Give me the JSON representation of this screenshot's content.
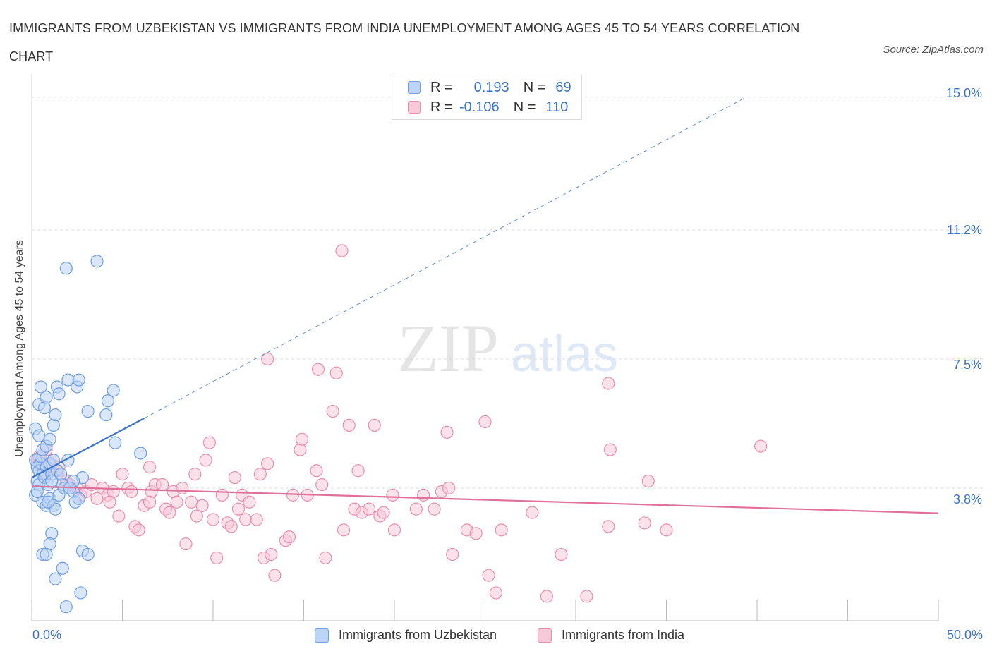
{
  "header": {
    "title": "IMMIGRANTS FROM UZBEKISTAN VS IMMIGRANTS FROM INDIA UNEMPLOYMENT AMONG AGES 45 TO 54 YEARS CORRELATION CHART",
    "source": "Source: ZipAtlas.com"
  },
  "watermark": {
    "zip": "ZIP",
    "atlas": "atlas"
  },
  "legend": {
    "r_label": "R =",
    "n_label": "N =",
    "uzbekistan": {
      "r": "0.193",
      "n": "69"
    },
    "india": {
      "r": "-0.106",
      "n": "110"
    }
  },
  "colors": {
    "uzbekistan_fill": "#bcd4f5",
    "uzbekistan_stroke": "#6d9ee3",
    "uzbekistan_line": "#3b73c8",
    "india_fill": "#f8c9d8",
    "india_stroke": "#e98fae",
    "india_line": "#e0709a",
    "grid": "#dcdcdc",
    "tick_text": "#3b73c8"
  },
  "chart_data": {
    "type": "scatter",
    "title": "IMMIGRANTS FROM UZBEKISTAN VS IMMIGRANTS FROM INDIA UNEMPLOYMENT AMONG AGES 45 TO 54 YEARS CORRELATION CHART",
    "xlabel": "",
    "ylabel": "Unemployment Among Ages 45 to 54 years",
    "xlim": [
      0,
      50
    ],
    "ylim": [
      0,
      15.4
    ],
    "x_tick_labels": [
      "0.0%",
      "50.0%"
    ],
    "y_ticks": [
      3.8,
      7.5,
      11.2,
      15.0
    ],
    "y_tick_labels": [
      "3.8%",
      "7.5%",
      "11.2%",
      "15.0%"
    ],
    "grid": true,
    "legend_position": "top-center",
    "series": [
      {
        "name": "Immigrants from Uzbekistan",
        "R": 0.193,
        "N": 69,
        "trend": {
          "x0": 0.0,
          "y0": 4.1,
          "x1": 6.2,
          "y1": 5.8,
          "dashed_to_x": 39.4,
          "dashed_to_y": 15.0
        },
        "points": [
          [
            0.2,
            4.6
          ],
          [
            0.3,
            4.4
          ],
          [
            0.4,
            4.3
          ],
          [
            0.5,
            4.5
          ],
          [
            0.6,
            4.2
          ],
          [
            0.3,
            4.0
          ],
          [
            0.4,
            3.9
          ],
          [
            0.7,
            4.1
          ],
          [
            0.8,
            4.4
          ],
          [
            0.5,
            4.7
          ],
          [
            1.0,
            4.5
          ],
          [
            1.1,
            4.2
          ],
          [
            0.9,
            3.9
          ],
          [
            1.2,
            4.6
          ],
          [
            1.4,
            4.3
          ],
          [
            0.2,
            3.6
          ],
          [
            0.3,
            3.7
          ],
          [
            0.6,
            3.4
          ],
          [
            0.8,
            3.3
          ],
          [
            1.0,
            3.5
          ],
          [
            1.2,
            3.3
          ],
          [
            1.3,
            3.2
          ],
          [
            1.5,
            3.6
          ],
          [
            1.7,
            3.9
          ],
          [
            1.8,
            3.8
          ],
          [
            2.0,
            4.6
          ],
          [
            2.3,
            3.7
          ],
          [
            2.4,
            3.4
          ],
          [
            2.6,
            3.5
          ],
          [
            2.8,
            4.1
          ],
          [
            0.2,
            5.5
          ],
          [
            0.4,
            5.3
          ],
          [
            0.6,
            4.9
          ],
          [
            0.8,
            5.0
          ],
          [
            1.0,
            5.2
          ],
          [
            1.2,
            5.6
          ],
          [
            1.3,
            5.9
          ],
          [
            0.4,
            6.2
          ],
          [
            0.5,
            6.7
          ],
          [
            0.7,
            6.1
          ],
          [
            0.8,
            6.4
          ],
          [
            1.4,
            6.7
          ],
          [
            1.5,
            6.5
          ],
          [
            2.0,
            6.9
          ],
          [
            2.5,
            6.7
          ],
          [
            2.6,
            6.9
          ],
          [
            3.1,
            6.0
          ],
          [
            4.1,
            5.9
          ],
          [
            4.2,
            6.3
          ],
          [
            4.5,
            6.6
          ],
          [
            4.6,
            5.1
          ],
          [
            6.0,
            4.8
          ],
          [
            1.1,
            2.5
          ],
          [
            1.0,
            2.2
          ],
          [
            0.6,
            1.9
          ],
          [
            0.8,
            1.9
          ],
          [
            1.3,
            1.2
          ],
          [
            1.7,
            1.5
          ],
          [
            2.8,
            2.0
          ],
          [
            3.1,
            1.9
          ],
          [
            2.7,
            0.8
          ],
          [
            1.9,
            0.4
          ],
          [
            1.9,
            10.1
          ],
          [
            3.6,
            10.3
          ],
          [
            2.3,
            4.0
          ],
          [
            1.6,
            4.2
          ],
          [
            0.9,
            3.4
          ],
          [
            1.1,
            4.0
          ],
          [
            2.1,
            3.8
          ]
        ]
      },
      {
        "name": "Immigrants from India",
        "R": -0.106,
        "N": 110,
        "trend": {
          "x0": 0.0,
          "y0": 3.85,
          "x1": 50.0,
          "y1": 3.08
        },
        "points": [
          [
            0.3,
            4.6
          ],
          [
            0.5,
            4.4
          ],
          [
            0.7,
            4.2
          ],
          [
            0.9,
            4.5
          ],
          [
            1.1,
            4.3
          ],
          [
            0.4,
            4.7
          ],
          [
            0.8,
            4.9
          ],
          [
            1.2,
            4.6
          ],
          [
            1.5,
            4.4
          ],
          [
            1.6,
            4.2
          ],
          [
            1.9,
            4.0
          ],
          [
            2.1,
            3.9
          ],
          [
            2.5,
            3.8
          ],
          [
            2.7,
            3.6
          ],
          [
            3.0,
            3.7
          ],
          [
            3.3,
            3.9
          ],
          [
            3.6,
            3.5
          ],
          [
            3.9,
            3.8
          ],
          [
            4.2,
            3.6
          ],
          [
            4.5,
            3.7
          ],
          [
            4.8,
            3.0
          ],
          [
            5.0,
            4.2
          ],
          [
            5.3,
            3.8
          ],
          [
            5.5,
            3.7
          ],
          [
            5.7,
            2.7
          ],
          [
            5.9,
            2.6
          ],
          [
            6.2,
            3.3
          ],
          [
            6.5,
            4.4
          ],
          [
            6.6,
            3.7
          ],
          [
            6.8,
            3.9
          ],
          [
            7.2,
            3.9
          ],
          [
            7.4,
            3.2
          ],
          [
            7.6,
            3.1
          ],
          [
            7.8,
            3.7
          ],
          [
            8.0,
            3.4
          ],
          [
            8.3,
            3.8
          ],
          [
            8.5,
            2.2
          ],
          [
            8.8,
            3.4
          ],
          [
            9.0,
            4.2
          ],
          [
            9.4,
            3.3
          ],
          [
            9.6,
            4.6
          ],
          [
            9.8,
            5.1
          ],
          [
            10.0,
            2.9
          ],
          [
            10.2,
            1.8
          ],
          [
            10.5,
            3.6
          ],
          [
            10.8,
            2.8
          ],
          [
            11.0,
            2.7
          ],
          [
            11.2,
            4.1
          ],
          [
            11.4,
            3.2
          ],
          [
            11.6,
            3.6
          ],
          [
            11.8,
            2.9
          ],
          [
            12.0,
            3.4
          ],
          [
            12.4,
            2.9
          ],
          [
            12.6,
            4.2
          ],
          [
            12.8,
            1.8
          ],
          [
            13.0,
            4.5
          ],
          [
            13.2,
            1.9
          ],
          [
            13.4,
            1.3
          ],
          [
            13.0,
            7.5
          ],
          [
            14.0,
            2.3
          ],
          [
            14.2,
            2.4
          ],
          [
            14.4,
            3.6
          ],
          [
            14.8,
            4.9
          ],
          [
            14.9,
            5.2
          ],
          [
            15.2,
            3.6
          ],
          [
            15.7,
            4.3
          ],
          [
            15.8,
            7.2
          ],
          [
            16.0,
            3.9
          ],
          [
            16.2,
            1.8
          ],
          [
            16.6,
            6.0
          ],
          [
            16.8,
            7.1
          ],
          [
            17.1,
            10.6
          ],
          [
            17.2,
            2.6
          ],
          [
            17.5,
            5.6
          ],
          [
            17.8,
            3.2
          ],
          [
            18.0,
            4.3
          ],
          [
            18.2,
            3.1
          ],
          [
            18.6,
            3.2
          ],
          [
            18.9,
            5.6
          ],
          [
            19.2,
            3.0
          ],
          [
            19.4,
            3.1
          ],
          [
            19.9,
            3.6
          ],
          [
            20.0,
            2.6
          ],
          [
            21.2,
            3.2
          ],
          [
            21.6,
            3.6
          ],
          [
            22.2,
            3.2
          ],
          [
            22.6,
            3.7
          ],
          [
            22.9,
            5.4
          ],
          [
            23.0,
            3.8
          ],
          [
            23.2,
            1.9
          ],
          [
            24.0,
            2.6
          ],
          [
            24.5,
            2.5
          ],
          [
            25.0,
            5.7
          ],
          [
            25.2,
            1.3
          ],
          [
            25.6,
            0.8
          ],
          [
            25.9,
            2.6
          ],
          [
            27.6,
            3.1
          ],
          [
            28.4,
            0.7
          ],
          [
            29.2,
            1.9
          ],
          [
            30.6,
            0.7
          ],
          [
            31.8,
            6.8
          ],
          [
            31.8,
            2.7
          ],
          [
            31.9,
            4.9
          ],
          [
            34.0,
            4.0
          ],
          [
            33.8,
            2.8
          ],
          [
            35.0,
            2.6
          ],
          [
            40.2,
            5.0
          ],
          [
            6.5,
            3.4
          ],
          [
            9.1,
            3.0
          ],
          [
            4.3,
            3.4
          ]
        ]
      }
    ]
  },
  "bottom_legend": {
    "uzbekistan_label": "Immigrants from Uzbekistan",
    "india_label": "Immigrants from India"
  }
}
